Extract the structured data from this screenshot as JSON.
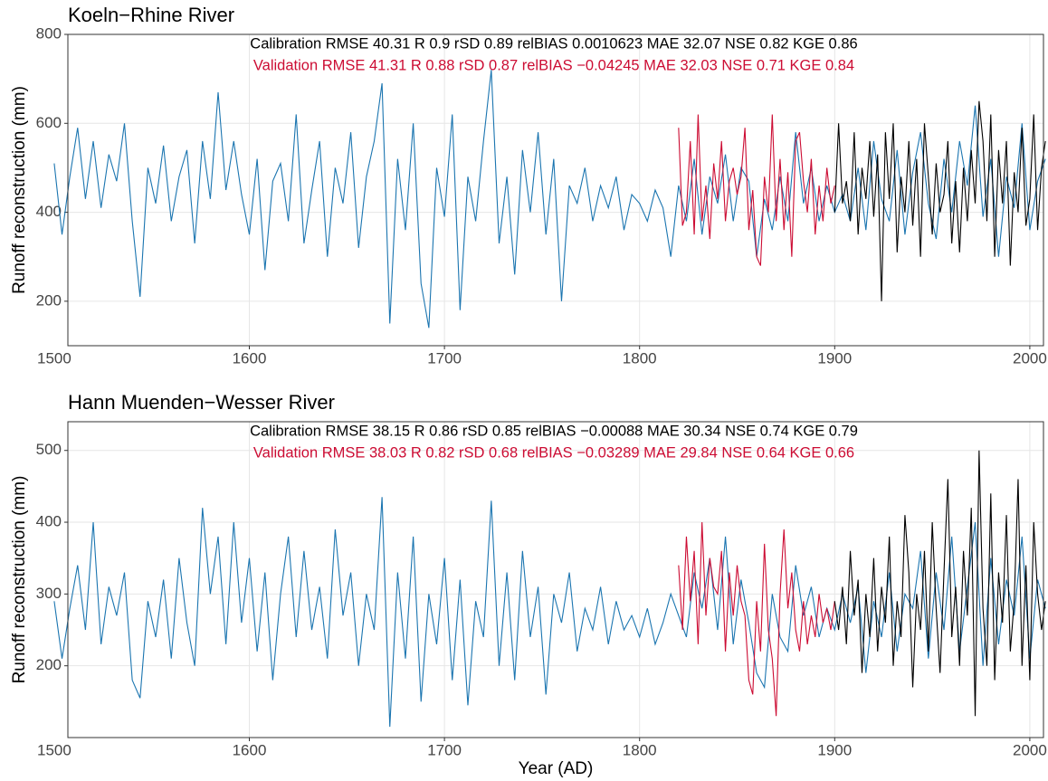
{
  "chart_data": [
    {
      "type": "line",
      "title": "Koeln−Rhine River",
      "ylabel": "Runoff reconstruction (mm)",
      "xlim": [
        1507,
        2007
      ],
      "xticks": [
        1500,
        1600,
        1700,
        1800,
        1900,
        2000
      ],
      "ylim": [
        100,
        800
      ],
      "yticks": [
        200,
        400,
        600,
        800
      ],
      "grid": true,
      "annotations": [
        {
          "text": "Calibration RMSE 40.31 R 0.9 rSD 0.89 relBIAS 0.0010623 MAE 32.07 NSE 0.82 KGE 0.86",
          "color": "#000000"
        },
        {
          "text": "Validation RMSE 41.31 R 0.88 rSD 0.87 relBIAS −0.04245 MAE 32.03 NSE 0.71 KGE 0.84",
          "color": "#cc0c33"
        }
      ],
      "series": [
        {
          "color": "#1b75b0",
          "x": [
            1500,
            1504,
            1508,
            1512,
            1516,
            1520,
            1524,
            1528,
            1532,
            1536,
            1540,
            1544,
            1548,
            1552,
            1556,
            1560,
            1564,
            1568,
            1572,
            1576,
            1580,
            1584,
            1588,
            1592,
            1596,
            1600,
            1604,
            1608,
            1612,
            1616,
            1620,
            1624,
            1628,
            1632,
            1636,
            1640,
            1644,
            1648,
            1652,
            1656,
            1660,
            1664,
            1668,
            1672,
            1676,
            1680,
            1684,
            1688,
            1692,
            1696,
            1700,
            1704,
            1708,
            1712,
            1716,
            1720,
            1724,
            1728,
            1732,
            1736,
            1740,
            1744,
            1748,
            1752,
            1756,
            1760,
            1764,
            1768,
            1772,
            1776,
            1780,
            1784,
            1788,
            1792,
            1796,
            1800,
            1804,
            1808,
            1812,
            1816,
            1820,
            1824,
            1828,
            1832,
            1836,
            1840,
            1844,
            1848,
            1852,
            1856,
            1860,
            1864,
            1868,
            1872,
            1876,
            1880,
            1884,
            1888,
            1892,
            1896,
            1900,
            1904,
            1908,
            1912,
            1916,
            1920,
            1924,
            1928,
            1932,
            1936,
            1940,
            1944,
            1948,
            1952,
            1956,
            1960,
            1964,
            1968,
            1972,
            1976,
            1980,
            1984,
            1988,
            1992,
            1996,
            2000,
            2004,
            2008
          ],
          "values": [
            510,
            350,
            480,
            590,
            430,
            560,
            410,
            530,
            470,
            600,
            380,
            210,
            500,
            420,
            550,
            380,
            480,
            540,
            330,
            560,
            430,
            670,
            450,
            560,
            440,
            350,
            520,
            270,
            470,
            510,
            380,
            620,
            330,
            450,
            560,
            300,
            500,
            420,
            580,
            320,
            480,
            560,
            690,
            150,
            520,
            360,
            600,
            240,
            140,
            500,
            390,
            620,
            180,
            480,
            380,
            560,
            720,
            330,
            480,
            260,
            540,
            400,
            580,
            350,
            520,
            200,
            460,
            420,
            500,
            380,
            460,
            410,
            480,
            360,
            440,
            420,
            380,
            450,
            410,
            300,
            460,
            380,
            520,
            350,
            480,
            420,
            530,
            380,
            500,
            470,
            300,
            430,
            360,
            480,
            380,
            580,
            420,
            500,
            380,
            460,
            400,
            440,
            380,
            500,
            360,
            560,
            430,
            380,
            540,
            350,
            490,
            580,
            420,
            340,
            520,
            400,
            560,
            460,
            640,
            390,
            520,
            300,
            480,
            410,
            600,
            360,
            470,
            520
          ]
        },
        {
          "color": "#cc0c33",
          "x": [
            1820,
            1822,
            1824,
            1826,
            1828,
            1830,
            1832,
            1834,
            1836,
            1838,
            1840,
            1842,
            1844,
            1846,
            1848,
            1850,
            1852,
            1854,
            1856,
            1858,
            1860,
            1862,
            1864,
            1866,
            1868,
            1870,
            1872,
            1874,
            1876,
            1878,
            1880,
            1882,
            1884,
            1886,
            1888,
            1890,
            1892,
            1894,
            1896,
            1898,
            1900
          ],
          "values": [
            590,
            370,
            400,
            560,
            350,
            620,
            380,
            460,
            340,
            510,
            430,
            560,
            380,
            470,
            500,
            440,
            480,
            590,
            360,
            450,
            300,
            280,
            480,
            400,
            620,
            380,
            520,
            360,
            490,
            300,
            560,
            580,
            470,
            400,
            520,
            350,
            460,
            380,
            500,
            420,
            460
          ]
        },
        {
          "color": "#000000",
          "x": [
            1900,
            1902,
            1904,
            1906,
            1908,
            1910,
            1912,
            1914,
            1916,
            1918,
            1920,
            1922,
            1924,
            1926,
            1928,
            1930,
            1932,
            1934,
            1936,
            1938,
            1940,
            1942,
            1944,
            1946,
            1948,
            1950,
            1952,
            1954,
            1956,
            1958,
            1960,
            1962,
            1964,
            1966,
            1968,
            1970,
            1972,
            1974,
            1976,
            1978,
            1980,
            1982,
            1984,
            1986,
            1988,
            1990,
            1992,
            1994,
            1996,
            1998,
            2000,
            2002,
            2004,
            2006,
            2008
          ],
          "values": [
            400,
            600,
            420,
            470,
            380,
            580,
            350,
            500,
            430,
            560,
            390,
            530,
            200,
            580,
            430,
            600,
            310,
            480,
            400,
            560,
            370,
            520,
            300,
            600,
            480,
            350,
            510,
            400,
            440,
            560,
            330,
            470,
            310,
            500,
            380,
            540,
            420,
            650,
            560,
            380,
            620,
            300,
            540,
            420,
            560,
            280,
            490,
            400,
            590,
            370,
            430,
            620,
            360,
            500,
            560
          ]
        }
      ]
    },
    {
      "type": "line",
      "title": "Hann Muenden−Wesser River",
      "ylabel": "Runoff reconstruction (mm)",
      "xlabel": "Year (AD)",
      "xlim": [
        1507,
        2007
      ],
      "xticks": [
        1500,
        1600,
        1700,
        1800,
        1900,
        2000
      ],
      "ylim": [
        100,
        540
      ],
      "yticks": [
        200,
        300,
        400,
        500
      ],
      "grid": true,
      "annotations": [
        {
          "text": "Calibration RMSE 38.15 R 0.86 rSD 0.85 relBIAS −0.00088 MAE 30.34 NSE 0.74 KGE 0.79",
          "color": "#000000"
        },
        {
          "text": "Validation RMSE 38.03 R 0.82 rSD 0.68 relBIAS −0.03289 MAE 29.84 NSE 0.64 KGE 0.66",
          "color": "#cc0c33"
        }
      ],
      "series": [
        {
          "color": "#1b75b0",
          "x": [
            1500,
            1504,
            1508,
            1512,
            1516,
            1520,
            1524,
            1528,
            1532,
            1536,
            1540,
            1544,
            1548,
            1552,
            1556,
            1560,
            1564,
            1568,
            1572,
            1576,
            1580,
            1584,
            1588,
            1592,
            1596,
            1600,
            1604,
            1608,
            1612,
            1616,
            1620,
            1624,
            1628,
            1632,
            1636,
            1640,
            1644,
            1648,
            1652,
            1656,
            1660,
            1664,
            1668,
            1672,
            1676,
            1680,
            1684,
            1688,
            1692,
            1696,
            1700,
            1704,
            1708,
            1712,
            1716,
            1720,
            1724,
            1728,
            1732,
            1736,
            1740,
            1744,
            1748,
            1752,
            1756,
            1760,
            1764,
            1768,
            1772,
            1776,
            1780,
            1784,
            1788,
            1792,
            1796,
            1800,
            1804,
            1808,
            1812,
            1816,
            1820,
            1824,
            1828,
            1832,
            1836,
            1840,
            1844,
            1848,
            1852,
            1856,
            1860,
            1864,
            1868,
            1872,
            1876,
            1880,
            1884,
            1888,
            1892,
            1896,
            1900,
            1904,
            1908,
            1912,
            1916,
            1920,
            1924,
            1928,
            1932,
            1936,
            1940,
            1944,
            1948,
            1952,
            1956,
            1960,
            1964,
            1968,
            1972,
            1976,
            1980,
            1984,
            1988,
            1992,
            1996,
            2000,
            2004,
            2008
          ],
          "values": [
            290,
            210,
            280,
            340,
            250,
            400,
            230,
            310,
            270,
            330,
            180,
            155,
            290,
            240,
            320,
            210,
            350,
            260,
            200,
            420,
            300,
            380,
            230,
            400,
            260,
            350,
            220,
            330,
            180,
            300,
            380,
            240,
            360,
            250,
            310,
            210,
            390,
            270,
            330,
            200,
            300,
            250,
            435,
            115,
            330,
            210,
            380,
            150,
            300,
            230,
            350,
            180,
            320,
            145,
            290,
            240,
            430,
            200,
            330,
            180,
            360,
            240,
            310,
            160,
            300,
            260,
            330,
            220,
            280,
            250,
            310,
            230,
            290,
            250,
            270,
            240,
            280,
            230,
            260,
            300,
            270,
            240,
            330,
            280,
            350,
            250,
            380,
            230,
            320,
            260,
            190,
            170,
            300,
            240,
            220,
            340,
            270,
            310,
            240,
            280,
            250,
            300,
            260,
            310,
            190,
            290,
            240,
            330,
            220,
            300,
            280,
            360,
            210,
            330,
            250,
            380,
            220,
            310,
            400,
            200,
            350,
            230,
            320,
            270,
            380,
            210,
            320,
            280
          ]
        },
        {
          "color": "#cc0c33",
          "x": [
            1820,
            1822,
            1824,
            1826,
            1828,
            1830,
            1832,
            1834,
            1836,
            1838,
            1840,
            1842,
            1844,
            1846,
            1848,
            1850,
            1852,
            1854,
            1856,
            1858,
            1860,
            1862,
            1864,
            1866,
            1868,
            1870,
            1872,
            1874,
            1876,
            1878,
            1880,
            1882,
            1884,
            1886,
            1888,
            1890,
            1892,
            1894,
            1896,
            1898,
            1900
          ],
          "values": [
            340,
            250,
            380,
            290,
            360,
            230,
            400,
            270,
            350,
            310,
            300,
            360,
            220,
            330,
            270,
            340,
            290,
            270,
            180,
            160,
            290,
            220,
            370,
            250,
            210,
            130,
            300,
            390,
            280,
            330,
            250,
            220,
            290,
            230,
            270,
            240,
            300,
            260,
            280,
            250,
            290
          ]
        },
        {
          "color": "#000000",
          "x": [
            1900,
            1902,
            1904,
            1906,
            1908,
            1910,
            1912,
            1914,
            1916,
            1918,
            1920,
            1922,
            1924,
            1926,
            1928,
            1930,
            1932,
            1934,
            1936,
            1938,
            1940,
            1942,
            1944,
            1946,
            1948,
            1950,
            1952,
            1954,
            1956,
            1958,
            1960,
            1962,
            1964,
            1966,
            1968,
            1970,
            1972,
            1974,
            1976,
            1978,
            1980,
            1982,
            1984,
            1986,
            1988,
            1990,
            1992,
            1994,
            1996,
            1998,
            2000,
            2002,
            2004,
            2006,
            2008
          ],
          "values": [
            290,
            250,
            310,
            230,
            360,
            270,
            320,
            190,
            300,
            240,
            350,
            220,
            310,
            260,
            380,
            200,
            290,
            240,
            410,
            330,
            170,
            300,
            250,
            360,
            220,
            400,
            280,
            190,
            330,
            460,
            240,
            310,
            200,
            360,
            270,
            420,
            130,
            500,
            280,
            200,
            440,
            180,
            330,
            260,
            410,
            220,
            290,
            460,
            200,
            340,
            180,
            400,
            300,
            250,
            290
          ]
        }
      ]
    }
  ]
}
